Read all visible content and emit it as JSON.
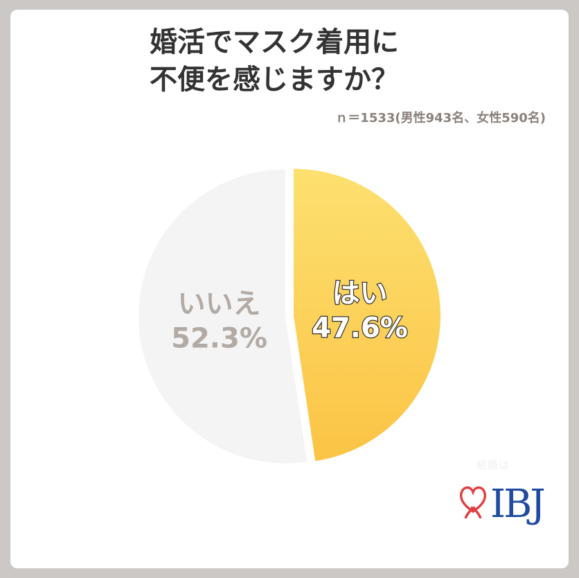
{
  "title": {
    "line1": "婚活でマスク着用に",
    "line2": "不便を感じますか？"
  },
  "sample_note": "ｎ＝1533(男性943名、女性590名)",
  "chart_data": {
    "type": "pie",
    "slices": [
      {
        "label": "はい",
        "value": 47.6,
        "value_label": "47.6%",
        "color": "#fcd05c"
      },
      {
        "label": "いいえ",
        "value": 52.3,
        "value_label": "52.3%",
        "color": "#f4f4f4"
      }
    ]
  },
  "logo": {
    "tagline": "結婚は",
    "brand": "IBJ",
    "heart_icon": "heart-icon",
    "brand_color": "#1e4aa0",
    "heart_color": "#e04040"
  },
  "colors": {
    "background": "#cbc8c5",
    "card": "#ffffff",
    "yes_top": "#fde070",
    "yes_bottom": "#fbc445",
    "no_text": "#b2aaa4"
  }
}
